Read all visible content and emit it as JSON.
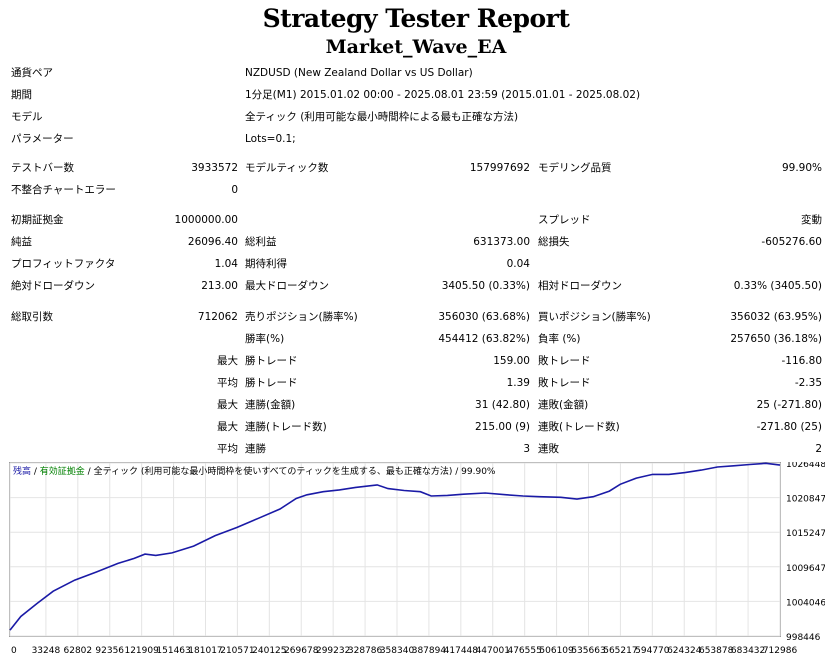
{
  "header": {
    "title": "Strategy Tester Report",
    "subtitle": "Market_Wave_EA"
  },
  "info": {
    "symbol_label": "通貨ペア",
    "symbol_value": "NZDUSD (New Zealand Dollar vs US Dollar)",
    "period_label": "期間",
    "period_value": "1分足(M1) 2015.01.02 00:00 - 2025.08.01 23:59 (2015.01.01 - 2025.08.02)",
    "model_label": "モデル",
    "model_value": "全ティック (利用可能な最小時間枠による最も正確な方法)",
    "params_label": "パラメーター",
    "params_value": "Lots=0.1;"
  },
  "stats": {
    "bars_label": "テストバー数",
    "bars_value": "3933572",
    "ticks_label": "モデルティック数",
    "ticks_value": "157997692",
    "quality_label": "モデリング品質",
    "quality_value": "99.90%",
    "mismatch_label": "不整合チャートエラー",
    "mismatch_value": "0",
    "deposit_label": "初期証拠金",
    "deposit_value": "1000000.00",
    "spread_label": "スプレッド",
    "spread_value": "変動",
    "net_label": "純益",
    "net_value": "26096.40",
    "gross_profit_label": "総利益",
    "gross_profit_value": "631373.00",
    "gross_loss_label": "総損失",
    "gross_loss_value": "-605276.60",
    "pf_label": "プロフィットファクタ",
    "pf_value": "1.04",
    "expected_label": "期待利得",
    "expected_value": "0.04",
    "abs_dd_label": "絶対ドローダウン",
    "abs_dd_value": "213.00",
    "max_dd_label": "最大ドローダウン",
    "max_dd_value": "3405.50 (0.33%)",
    "rel_dd_label": "相対ドローダウン",
    "rel_dd_value": "0.33% (3405.50)",
    "total_trades_label": "総取引数",
    "total_trades_value": "712062",
    "short_label": "売りポジション(勝率%)",
    "short_value": "356030 (63.68%)",
    "long_label": "買いポジション(勝率%)",
    "long_value": "356032 (63.95%)",
    "win_pct_label": "勝率(%)",
    "win_pct_value": "454412 (63.82%)",
    "loss_pct_label": "負率 (%)",
    "loss_pct_value": "257650 (36.18%)",
    "max_label": "最大",
    "avg_label": "平均",
    "largest_win_label": "勝トレード",
    "largest_win_value": "159.00",
    "largest_loss_label": "敗トレード",
    "largest_loss_value": "-116.80",
    "avg_win_label": "勝トレード",
    "avg_win_value": "1.39",
    "avg_loss_label": "敗トレード",
    "avg_loss_value": "-2.35",
    "max_cons_wins_label": "連勝(金額)",
    "max_cons_wins_value": "31 (42.80)",
    "max_cons_losses_label": "連敗(金額)",
    "max_cons_losses_value": "25 (-271.80)",
    "max_cons_profit_label": "連勝(トレード数)",
    "max_cons_profit_value": "215.00 (9)",
    "max_cons_loss_label": "連敗(トレード数)",
    "max_cons_loss_value": "-271.80 (25)",
    "avg_cons_wins_label": "連勝",
    "avg_cons_wins_value": "3",
    "avg_cons_losses_label": "連敗",
    "avg_cons_losses_value": "2"
  },
  "chart_legend": {
    "balance": "残高",
    "sep1": " / ",
    "equity": "有効証拠金",
    "sep2": " / ",
    "model": "全ティック (利用可能な最小時間枠を使いすべてのティックを生成する、最も正確な方法)",
    "sep3": " / ",
    "quality": "99.90%"
  },
  "colors": {
    "balance": "#1a1aa6",
    "equity": "#008000",
    "grid": "#e4e4e4"
  },
  "chart_data": {
    "type": "line",
    "x_ticks": [
      0,
      33248,
      62802,
      92356,
      121909,
      151463,
      181017,
      210571,
      240125,
      269678,
      299232,
      328786,
      358340,
      387894,
      417448,
      447001,
      476555,
      506109,
      535663,
      565217,
      594770,
      624324,
      653878,
      683432,
      712986
    ],
    "x_tick_labels": [
      "0",
      "33248",
      "62802",
      "92356",
      "121909",
      "151463",
      "181017",
      "210571",
      "240125",
      "269678",
      "299232",
      "328786",
      "358340",
      "387894",
      "417448",
      "447001",
      "476555",
      "506109",
      "535663",
      "565217",
      "594770",
      "624324",
      "653878",
      "683432",
      "712986"
    ],
    "y_ticks": [
      998446,
      1004046,
      1009647,
      1015247,
      1020847,
      1026448
    ],
    "ylim": [
      998446,
      1026448
    ],
    "xlim": [
      0,
      712986
    ],
    "series": [
      {
        "name": "残高",
        "x": [
          0,
          10000,
          25000,
          40000,
          60000,
          80000,
          100000,
          115000,
          125000,
          135000,
          150000,
          170000,
          190000,
          210000,
          230000,
          250000,
          265000,
          275000,
          290000,
          305000,
          320000,
          340000,
          350000,
          365000,
          380000,
          390000,
          405000,
          420000,
          440000,
          460000,
          475000,
          490000,
          510000,
          525000,
          540000,
          555000,
          565000,
          580000,
          595000,
          610000,
          625000,
          640000,
          655000,
          670000,
          685000,
          700000,
          712986
        ],
        "y": [
          999400,
          1001600,
          1003700,
          1005700,
          1007500,
          1008800,
          1010200,
          1011000,
          1011700,
          1011500,
          1011900,
          1013000,
          1014700,
          1016000,
          1017500,
          1019000,
          1020700,
          1021300,
          1021800,
          1022100,
          1022500,
          1022900,
          1022300,
          1022000,
          1021800,
          1021100,
          1021200,
          1021400,
          1021600,
          1021300,
          1021100,
          1021000,
          1020900,
          1020600,
          1021000,
          1021900,
          1023000,
          1024000,
          1024600,
          1024600,
          1024900,
          1025300,
          1025800,
          1026000,
          1026200,
          1026400,
          1026100
        ]
      }
    ]
  }
}
